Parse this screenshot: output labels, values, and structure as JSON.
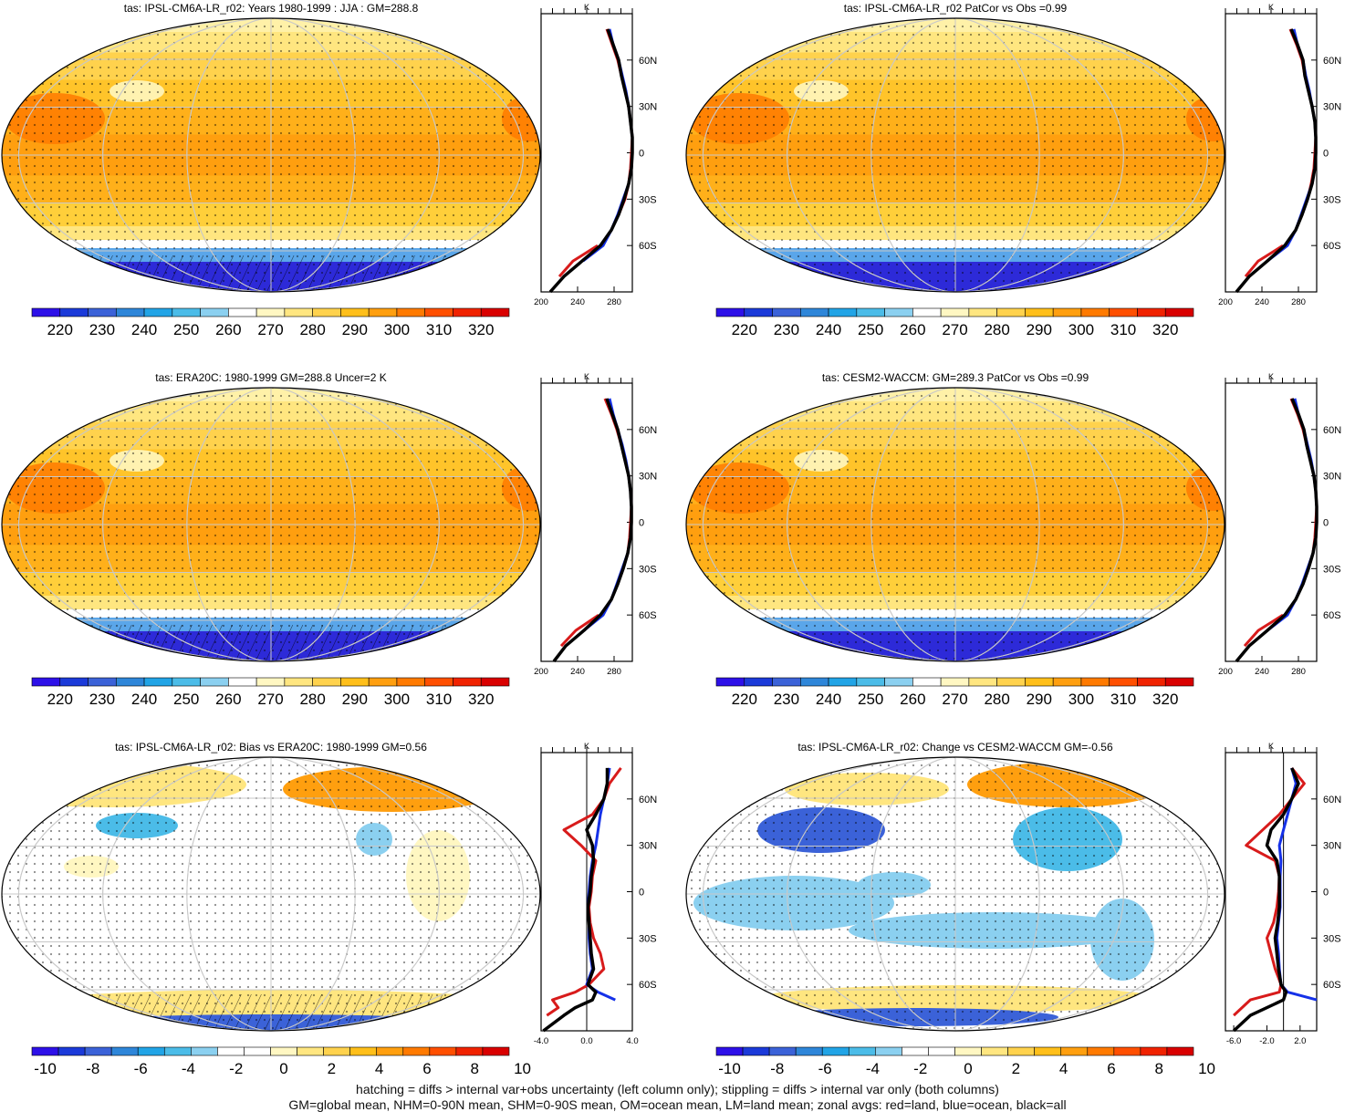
{
  "colors": {
    "abs_scale": [
      "#2d10e8",
      "#1b3ad9",
      "#3b62d8",
      "#2e86d9",
      "#21a4e6",
      "#4bbce8",
      "#8bd0f0",
      "#ffffff",
      "#fff7c2",
      "#ffe680",
      "#ffd24d",
      "#ffbf1a",
      "#ff9f0f",
      "#ff7a00",
      "#ff4f00",
      "#f02200",
      "#d90000"
    ],
    "diff_scale": [
      "#2d10e8",
      "#1b3ad9",
      "#3b62d8",
      "#2e86d9",
      "#21a4e6",
      "#4bbce8",
      "#8bd0f0",
      "#ffffff",
      "#ffffff",
      "#fff7c2",
      "#ffe680",
      "#ffd24d",
      "#ffbf1a",
      "#ff9f0f",
      "#ff7a00",
      "#ff4f00",
      "#f02200",
      "#d90000"
    ],
    "land_line": "#d81b1b",
    "ocean_line": "#1531e8",
    "all_line": "#000000"
  },
  "panels": [
    {
      "id": "ipsl-jja",
      "title": "tas: IPSL-CM6A-LR_r02: Years 1980-1999 : JJA : GM=288.8",
      "colorbar_labels": [
        "220",
        "230",
        "240",
        "250",
        "260",
        "270",
        "280",
        "290",
        "300",
        "310",
        "320"
      ],
      "zonal": {
        "unit": "K",
        "xticks": [
          "200",
          "240",
          "280"
        ],
        "xlim": [
          200,
          300
        ],
        "lat_labels": [
          "60N",
          "30N",
          "0",
          "30S",
          "60S"
        ]
      }
    },
    {
      "id": "ipsl-patcor",
      "title": "tas: IPSL-CM6A-LR_r02 PatCor vs Obs =0.99",
      "colorbar_labels": [
        "220",
        "230",
        "240",
        "250",
        "260",
        "270",
        "280",
        "290",
        "300",
        "310",
        "320"
      ],
      "zonal": {
        "unit": "K",
        "xticks": [
          "200",
          "240",
          "280"
        ],
        "xlim": [
          200,
          300
        ],
        "lat_labels": [
          "60N",
          "30N",
          "0",
          "30S",
          "60S"
        ]
      }
    },
    {
      "id": "era20c",
      "title": "tas: ERA20C: 1980-1999 GM=288.8 Uncer=2 K",
      "colorbar_labels": [
        "220",
        "230",
        "240",
        "250",
        "260",
        "270",
        "280",
        "290",
        "300",
        "310",
        "320"
      ],
      "zonal": {
        "unit": "K",
        "xticks": [
          "200",
          "240",
          "280"
        ],
        "xlim": [
          200,
          300
        ],
        "lat_labels": [
          "60N",
          "30N",
          "0",
          "30S",
          "60S"
        ]
      }
    },
    {
      "id": "cesm2",
      "title": "tas: CESM2-WACCM: GM=289.3 PatCor vs Obs =0.99",
      "colorbar_labels": [
        "220",
        "230",
        "240",
        "250",
        "260",
        "270",
        "280",
        "290",
        "300",
        "310",
        "320"
      ],
      "zonal": {
        "unit": "K",
        "xticks": [
          "200",
          "240",
          "280"
        ],
        "xlim": [
          200,
          300
        ],
        "lat_labels": [
          "60N",
          "30N",
          "0",
          "30S",
          "60S"
        ]
      }
    },
    {
      "id": "bias",
      "title": "tas: IPSL-CM6A-LR_r02: Bias vs ERA20C: 1980-1999 GM=0.56",
      "colorbar_labels": [
        "-10",
        "-8",
        "-6",
        "-4",
        "-2",
        "0",
        "2",
        "4",
        "6",
        "8",
        "10"
      ],
      "zonal": {
        "unit": "K",
        "xticks": [
          "-4.0",
          "0.0",
          "4.0"
        ],
        "xlim": [
          -4,
          4
        ],
        "lat_labels": [
          "60N",
          "30N",
          "0",
          "30S",
          "60S"
        ]
      }
    },
    {
      "id": "change",
      "title": "tas: IPSL-CM6A-LR_r02: Change vs CESM2-WACCM GM=-0.56",
      "colorbar_labels": [
        "-10",
        "-8",
        "-6",
        "-4",
        "-2",
        "0",
        "2",
        "4",
        "6",
        "8",
        "10"
      ],
      "zonal": {
        "unit": "K",
        "xticks": [
          "-6.0",
          "-2.0",
          "2.0"
        ],
        "xlim": [
          -7,
          4
        ],
        "lat_labels": [
          "60N",
          "30N",
          "0",
          "30S",
          "60S"
        ]
      }
    }
  ],
  "footer": {
    "line1": "hatching = diffs > internal var+obs uncertainty (left column only); stippling = diffs > internal var only (both columns)",
    "line2": "GM=global mean, NHM=0-90N mean, SHM=0-90S mean, OM=ocean mean, LM=land mean; zonal avgs: red=land, blue=ocean, black=all"
  },
  "chart_data": [
    {
      "type": "line",
      "panel": "ipsl-jja",
      "xlabel": "K",
      "ylim": [
        -90,
        90
      ],
      "xlim": [
        200,
        300
      ],
      "lat": [
        -90,
        -80,
        -70,
        -60,
        -50,
        -40,
        -30,
        -20,
        -10,
        0,
        10,
        20,
        30,
        40,
        50,
        60,
        70,
        80,
        90
      ],
      "series": [
        {
          "color": "red",
          "values": [
            null,
            220,
            235,
            262,
            null,
            285,
            292,
            296,
            298,
            299,
            300,
            298,
            296,
            292,
            288,
            284,
            278,
            272,
            null
          ]
        },
        {
          "color": "blue",
          "values": [
            null,
            null,
            246,
            268,
            277,
            284,
            290,
            296,
            299,
            300,
            300,
            298,
            296,
            293,
            289,
            285,
            279,
            275,
            null
          ]
        },
        {
          "color": "black",
          "values": [
            210,
            225,
            245,
            265,
            277,
            285,
            291,
            296,
            299,
            300,
            300,
            298,
            296,
            292,
            288,
            285,
            279,
            273,
            null
          ]
        }
      ]
    },
    {
      "type": "line",
      "panel": "ipsl-patcor",
      "xlabel": "K",
      "ylim": [
        -90,
        90
      ],
      "xlim": [
        200,
        300
      ],
      "lat": [
        -90,
        -80,
        -70,
        -60,
        -50,
        -40,
        -30,
        -20,
        -10,
        0,
        10,
        20,
        30,
        40,
        50,
        60,
        70,
        80,
        90
      ],
      "series": [
        {
          "color": "red",
          "values": [
            null,
            222,
            236,
            263,
            null,
            284,
            290,
            294,
            297,
            298,
            299,
            298,
            295,
            291,
            287,
            284,
            278,
            271,
            null
          ]
        },
        {
          "color": "blue",
          "values": [
            null,
            null,
            246,
            268,
            277,
            283,
            289,
            295,
            298,
            299,
            299,
            298,
            295,
            292,
            288,
            285,
            279,
            275,
            null
          ]
        },
        {
          "color": "black",
          "values": [
            212,
            226,
            246,
            265,
            277,
            284,
            290,
            295,
            298,
            299,
            299,
            298,
            295,
            291,
            287,
            285,
            279,
            272,
            null
          ]
        }
      ]
    },
    {
      "type": "line",
      "panel": "era20c",
      "xlabel": "K",
      "ylim": [
        -90,
        90
      ],
      "xlim": [
        200,
        300
      ],
      "lat": [
        -90,
        -80,
        -70,
        -60,
        -50,
        -40,
        -30,
        -20,
        -10,
        0,
        10,
        20,
        30,
        40,
        50,
        60,
        70,
        80,
        90
      ],
      "series": [
        {
          "color": "red",
          "values": [
            null,
            222,
            238,
            263,
            null,
            284,
            290,
            295,
            297,
            298,
            299,
            298,
            296,
            292,
            288,
            283,
            277,
            270,
            null
          ]
        },
        {
          "color": "blue",
          "values": [
            null,
            null,
            247,
            268,
            277,
            283,
            289,
            295,
            298,
            299,
            299,
            298,
            296,
            293,
            289,
            284,
            279,
            275,
            null
          ]
        },
        {
          "color": "black",
          "values": [
            214,
            227,
            247,
            265,
            277,
            284,
            290,
            295,
            298,
            299,
            299,
            298,
            296,
            292,
            288,
            284,
            278,
            272,
            null
          ]
        }
      ]
    },
    {
      "type": "line",
      "panel": "cesm2",
      "xlabel": "K",
      "ylim": [
        -90,
        90
      ],
      "xlim": [
        200,
        300
      ],
      "lat": [
        -90,
        -80,
        -70,
        -60,
        -50,
        -40,
        -30,
        -20,
        -10,
        0,
        10,
        20,
        30,
        40,
        50,
        60,
        70,
        80,
        90
      ],
      "series": [
        {
          "color": "red",
          "values": [
            null,
            221,
            236,
            263,
            null,
            285,
            291,
            296,
            298,
            299,
            300,
            299,
            297,
            293,
            289,
            285,
            279,
            272,
            null
          ]
        },
        {
          "color": "blue",
          "values": [
            null,
            null,
            246,
            268,
            277,
            284,
            290,
            296,
            299,
            300,
            300,
            299,
            297,
            294,
            290,
            286,
            280,
            276,
            null
          ]
        },
        {
          "color": "black",
          "values": [
            212,
            226,
            246,
            265,
            277,
            285,
            291,
            296,
            299,
            300,
            300,
            299,
            297,
            293,
            289,
            286,
            280,
            273,
            null
          ]
        }
      ]
    },
    {
      "type": "line",
      "panel": "bias",
      "xlabel": "K",
      "ylim": [
        -90,
        90
      ],
      "xlim": [
        -4,
        4
      ],
      "lat": [
        -90,
        -80,
        -75,
        -70,
        -65,
        -60,
        -50,
        -40,
        -30,
        -20,
        -10,
        0,
        10,
        20,
        30,
        40,
        50,
        60,
        70,
        80,
        90
      ],
      "series": [
        {
          "color": "red",
          "values": [
            null,
            -3.5,
            -2.5,
            -3.0,
            -1.0,
            0.2,
            1.5,
            1.2,
            0.6,
            0.3,
            0.2,
            0.4,
            0.5,
            0.8,
            -0.5,
            -2.0,
            0.5,
            1.5,
            2.0,
            3.0,
            null
          ]
        },
        {
          "color": "blue",
          "values": [
            null,
            null,
            null,
            2.5,
            1.0,
            0.0,
            0.5,
            0.3,
            0.2,
            0.2,
            0.1,
            0.2,
            0.3,
            0.5,
            0.8,
            1.0,
            1.2,
            1.5,
            1.8,
            2.0,
            null
          ]
        },
        {
          "color": "black",
          "values": [
            -3.8,
            -2.0,
            -1.0,
            0.5,
            0.8,
            0.1,
            0.6,
            0.4,
            0.3,
            0.2,
            0.1,
            0.3,
            0.4,
            0.6,
            0.5,
            0.0,
            0.8,
            1.5,
            1.8,
            1.8,
            null
          ]
        }
      ]
    },
    {
      "type": "line",
      "panel": "change",
      "xlabel": "K",
      "ylim": [
        -90,
        90
      ],
      "xlim": [
        -7,
        4
      ],
      "lat": [
        -90,
        -80,
        -70,
        -65,
        -60,
        -50,
        -40,
        -30,
        -20,
        -10,
        0,
        10,
        20,
        30,
        40,
        50,
        60,
        70,
        80,
        90
      ],
      "series": [
        {
          "color": "red",
          "values": [
            null,
            -6.0,
            -4.0,
            -0.5,
            -0.3,
            -1.0,
            -1.5,
            -2.0,
            -1.2,
            -0.8,
            -0.6,
            -0.5,
            -1.0,
            -4.5,
            -2.5,
            -0.5,
            1.0,
            2.5,
            1.0,
            null
          ]
        },
        {
          "color": "blue",
          "values": [
            null,
            null,
            4.5,
            0.5,
            -0.3,
            -0.5,
            -0.6,
            -0.8,
            -0.6,
            -0.4,
            -0.4,
            -0.4,
            -0.3,
            -0.5,
            0.0,
            0.5,
            1.0,
            1.5,
            1.0,
            null
          ]
        },
        {
          "color": "black",
          "values": [
            -6.0,
            -4.0,
            0.0,
            0.3,
            -0.3,
            -0.6,
            -0.8,
            -1.0,
            -0.7,
            -0.5,
            -0.5,
            -0.5,
            -0.8,
            -2.0,
            -1.5,
            0.0,
            1.0,
            1.8,
            1.0,
            null
          ]
        }
      ]
    }
  ]
}
